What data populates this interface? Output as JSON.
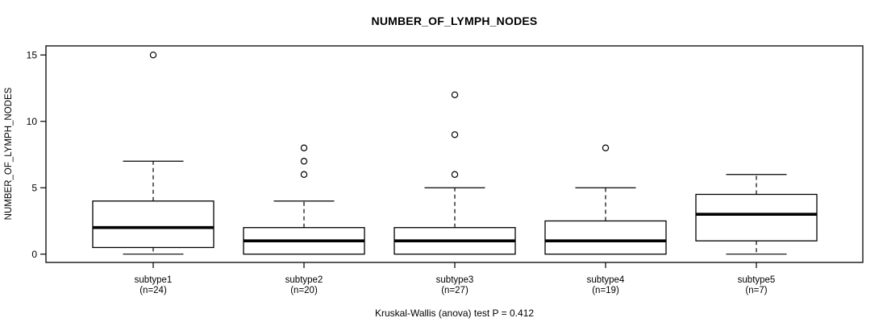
{
  "figure": {
    "title": "NUMBER_OF_LYMPH_NODES",
    "y_axis_label": "NUMBER_OF_LYMPH_NODES",
    "footer": "Kruskal-Wallis (anova) test P = 0.412"
  },
  "chart_data": {
    "type": "boxplot",
    "title": "NUMBER_OF_LYMPH_NODES",
    "ylabel": "NUMBER_OF_LYMPH_NODES",
    "xlabel": "",
    "ylim": [
      0,
      15
    ],
    "yticks": [
      0,
      5,
      10,
      15
    ],
    "grid": false,
    "legend": "none",
    "annotation": "Kruskal-Wallis (anova) test P = 0.412",
    "groups": [
      {
        "label": "subtype1",
        "n_label": "(n=24)",
        "n": 24,
        "whisker_low": 0,
        "q1": 0.5,
        "median": 2,
        "q3": 4,
        "whisker_high": 7,
        "outliers": [
          15
        ]
      },
      {
        "label": "subtype2",
        "n_label": "(n=20)",
        "n": 20,
        "whisker_low": 0,
        "q1": 0,
        "median": 1,
        "q3": 2,
        "whisker_high": 4,
        "outliers": [
          6,
          7,
          8
        ]
      },
      {
        "label": "subtype3",
        "n_label": "(n=27)",
        "n": 27,
        "whisker_low": 0,
        "q1": 0,
        "median": 1,
        "q3": 2,
        "whisker_high": 5,
        "outliers": [
          6,
          9,
          12
        ]
      },
      {
        "label": "subtype4",
        "n_label": "(n=19)",
        "n": 19,
        "whisker_low": 0,
        "q1": 0,
        "median": 1,
        "q3": 2.5,
        "whisker_high": 5,
        "outliers": [
          8
        ]
      },
      {
        "label": "subtype5",
        "n_label": "(n=7)",
        "n": 7,
        "whisker_low": 0,
        "q1": 1,
        "median": 3,
        "q3": 4.5,
        "whisker_high": 6,
        "outliers": []
      }
    ],
    "colors": {
      "line": "#000000",
      "box_fill": "#ffffff",
      "background": "#ffffff"
    }
  }
}
